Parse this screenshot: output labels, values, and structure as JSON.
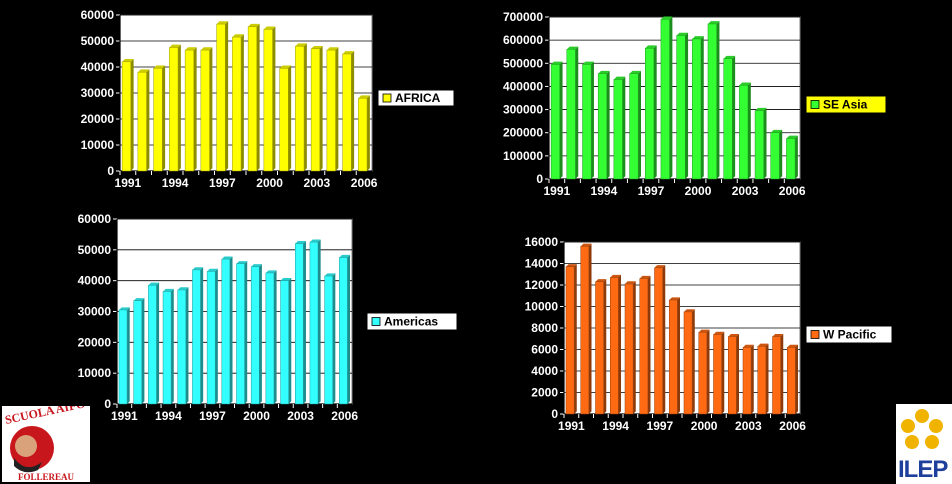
{
  "chart_data": [
    {
      "type": "bar",
      "categories": [
        1991,
        1992,
        1993,
        1994,
        1995,
        1996,
        1997,
        1998,
        1999,
        2000,
        2001,
        2002,
        2003,
        2004,
        2005,
        2006
      ],
      "series": [
        {
          "name": "AFRICA",
          "values": [
            42000,
            38000,
            39500,
            47500,
            46500,
            46500,
            56500,
            51500,
            55500,
            54500,
            39500,
            48000,
            47000,
            46500,
            45000,
            28000
          ]
        }
      ],
      "ylim": [
        0,
        60000
      ],
      "yticks": [
        0,
        10000,
        20000,
        30000,
        40000,
        50000,
        60000
      ],
      "xticks": [
        "1991",
        "1994",
        "1997",
        "2000",
        "2003",
        "2006"
      ],
      "color": "#ffff00",
      "legend": "right"
    },
    {
      "type": "bar",
      "categories": [
        1991,
        1992,
        1993,
        1994,
        1995,
        1996,
        1997,
        1998,
        1999,
        2000,
        2001,
        2002,
        2003,
        2004,
        2005,
        2006
      ],
      "series": [
        {
          "name": "SE Asia",
          "values": [
            495000,
            560000,
            495000,
            455000,
            430000,
            455000,
            565000,
            690000,
            620000,
            605000,
            670000,
            520000,
            405000,
            295000,
            200000,
            175000
          ]
        }
      ],
      "ylim": [
        0,
        700000
      ],
      "yticks": [
        0,
        100000,
        200000,
        300000,
        400000,
        500000,
        600000,
        700000
      ],
      "xticks": [
        "1991",
        "1994",
        "1997",
        "2000",
        "2003",
        "2006"
      ],
      "color": "#33ff33",
      "legend": "right"
    },
    {
      "type": "bar",
      "categories": [
        1991,
        1992,
        1993,
        1994,
        1995,
        1996,
        1997,
        1998,
        1999,
        2000,
        2001,
        2002,
        2003,
        2004,
        2005,
        2006
      ],
      "series": [
        {
          "name": "Americas",
          "values": [
            30500,
            33500,
            38500,
            36500,
            37000,
            43500,
            43000,
            47000,
            45500,
            44500,
            42500,
            40000,
            52000,
            52500,
            41500,
            47500
          ]
        }
      ],
      "ylim": [
        0,
        60000
      ],
      "yticks": [
        0,
        10000,
        20000,
        30000,
        40000,
        50000,
        60000
      ],
      "xticks": [
        "1991",
        "1994",
        "1997",
        "2000",
        "2003",
        "2006"
      ],
      "color": "#33ffff",
      "legend": "right"
    },
    {
      "type": "bar",
      "categories": [
        1991,
        1992,
        1993,
        1994,
        1995,
        1996,
        1997,
        1998,
        1999,
        2000,
        2001,
        2002,
        2003,
        2004,
        2005,
        2006
      ],
      "series": [
        {
          "name": "W Pacific",
          "values": [
            13700,
            15600,
            12300,
            12700,
            12100,
            12600,
            13600,
            10600,
            9500,
            7600,
            7400,
            7200,
            6200,
            6300,
            7200,
            6200
          ]
        }
      ],
      "ylim": [
        0,
        16000
      ],
      "yticks": [
        0,
        2000,
        4000,
        6000,
        8000,
        10000,
        12000,
        14000,
        16000
      ],
      "xticks": [
        "1991",
        "1994",
        "1997",
        "2000",
        "2003",
        "2006"
      ],
      "color": "#ff6a13",
      "legend": "right"
    }
  ],
  "logos": {
    "left_text": "SCUOLA AIFO FOLLEREAU",
    "right_text": "ILEP"
  }
}
